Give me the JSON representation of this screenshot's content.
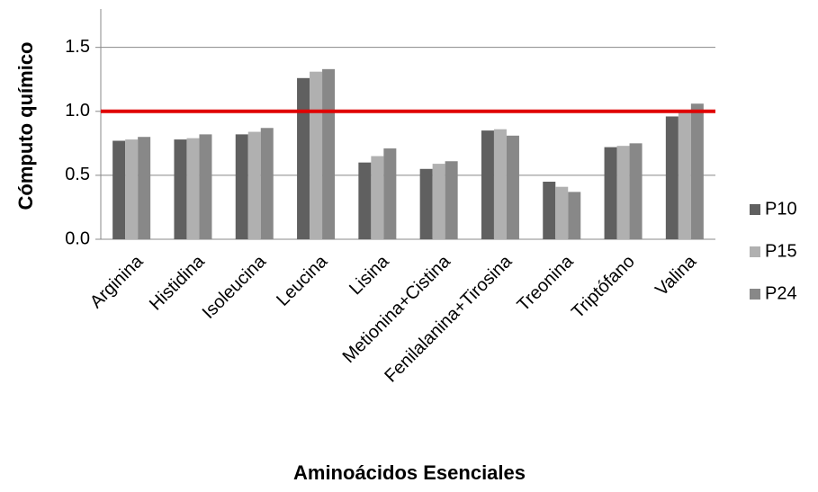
{
  "chart_data": {
    "type": "bar",
    "y_label": "Cómputo químico",
    "x_label": "Aminoácidos Esenciales",
    "categories": [
      "Arginina",
      "Histidina",
      "Isoleucina",
      "Leucina",
      "Lisina",
      "Metionina+Cistina",
      "Fenilalanina+Tirosina",
      "Treonina",
      "Triptófano",
      "Valina"
    ],
    "series": [
      {
        "name": "P10",
        "color": "#606060",
        "values": [
          0.77,
          0.78,
          0.82,
          1.26,
          0.6,
          0.55,
          0.85,
          0.45,
          0.72,
          0.96
        ]
      },
      {
        "name": "P15",
        "color": "#b0b0b0",
        "values": [
          0.78,
          0.79,
          0.84,
          1.31,
          0.65,
          0.59,
          0.86,
          0.41,
          0.73,
          0.99
        ]
      },
      {
        "name": "P24",
        "color": "#888888",
        "values": [
          0.8,
          0.82,
          0.87,
          1.33,
          0.71,
          0.61,
          0.81,
          0.37,
          0.75,
          1.06
        ]
      }
    ],
    "ylim": [
      0,
      1.8
    ],
    "yticks": [
      {
        "value": 0,
        "label": "0.0"
      },
      0.5,
      {
        "value": 1,
        "label": "1.0"
      },
      1.5
    ],
    "grid": true,
    "reference_line": {
      "value": 1,
      "color": "#e00000"
    },
    "legend": "right"
  }
}
